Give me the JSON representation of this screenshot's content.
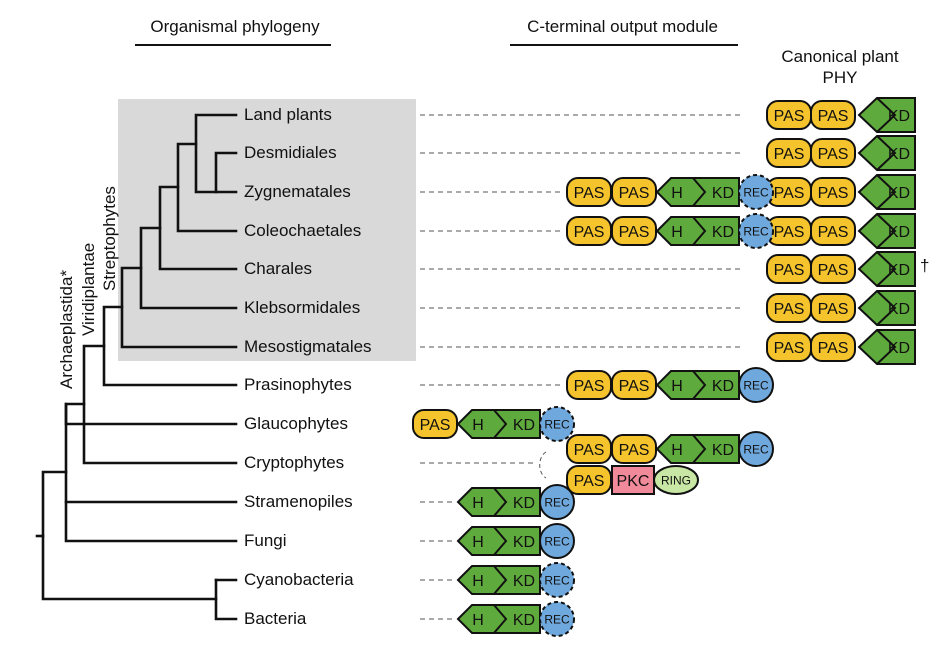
{
  "headers": {
    "phylogeny": "Organismal phylogeny",
    "module": "C-terminal output module",
    "canonical": "Canonical plant PHY"
  },
  "clades": {
    "archaeplastida": "Archaeplastida*",
    "viridiplantae": "Viridiplantae",
    "streptophytes": "Streptophytes"
  },
  "taxa": [
    "Land plants",
    "Desmidiales",
    "Zygnematales",
    "Coleochaetales",
    "Charales",
    "Klebsormidales",
    "Mesostigmatales",
    "Prasinophytes",
    "Glaucophytes",
    "Cryptophytes",
    "Stramenopiles",
    "Fungi",
    "Cyanobacteria",
    "Bacteria"
  ],
  "domain_labels": {
    "pas": "PAS",
    "h": "H",
    "kd": "KD",
    "rec": "REC",
    "pkc": "PKC",
    "ring": "RING"
  },
  "dagger": "†",
  "colors": {
    "pas": "#f5c32c",
    "kinase": "#5faa3c",
    "rec": "#6fa8dc",
    "pkc": "#f08a9a",
    "ring": "#c8e6a4",
    "highlight": "#d9d9d9"
  },
  "modules": {
    "Zygnematales": [
      "PAS",
      "PAS",
      "H",
      "KD",
      "REC-dashed"
    ],
    "Coleochaetales": [
      "PAS",
      "PAS",
      "H",
      "KD",
      "REC-dashed"
    ],
    "Prasinophytes": [
      "PAS",
      "PAS",
      "H",
      "KD",
      "REC"
    ],
    "Glaucophytes": [
      "PAS",
      "H",
      "KD",
      "REC-dashed"
    ],
    "Cryptophytes": [
      [
        "PAS",
        "PAS",
        "H",
        "KD",
        "REC"
      ],
      [
        "PAS",
        "PKC",
        "RING"
      ]
    ],
    "Stramenopiles": [
      "H",
      "KD",
      "REC"
    ],
    "Fungi": [
      "H",
      "KD",
      "REC"
    ],
    "Cyanobacteria": [
      "H",
      "KD",
      "REC-dashed"
    ],
    "Bacteria": [
      "H",
      "KD",
      "REC-dashed"
    ]
  },
  "canonical_rows": [
    "Land plants",
    "Desmidiales",
    "Zygnematales",
    "Coleochaetales",
    "Charales",
    "Klebsormidales",
    "Mesostigmatales"
  ],
  "dagger_row": "Charales"
}
